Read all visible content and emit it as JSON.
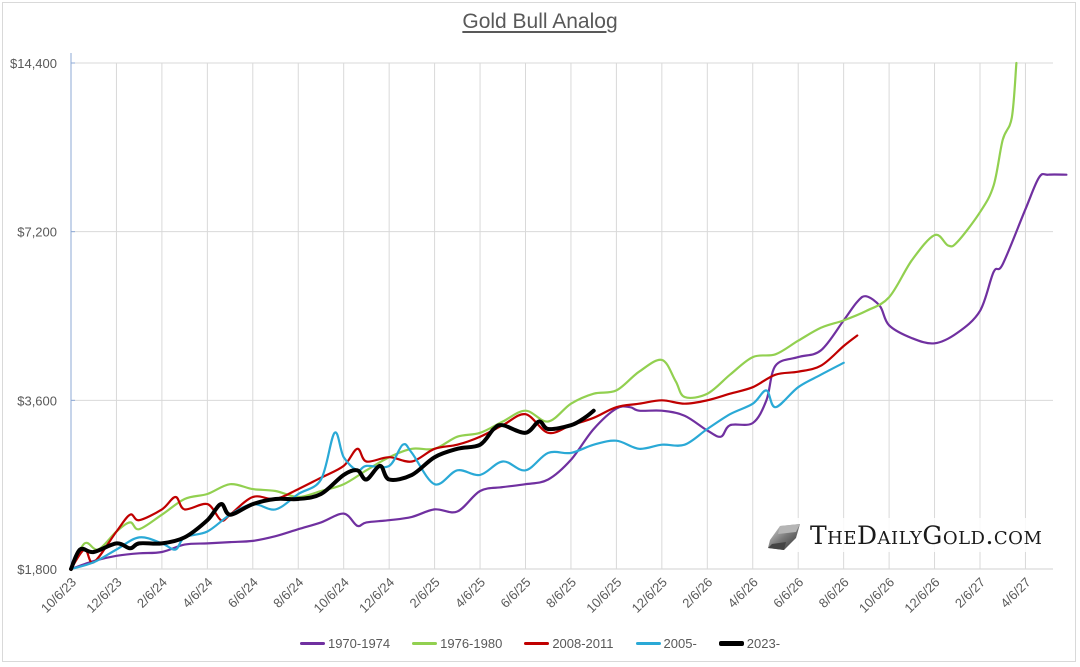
{
  "chart_data": {
    "type": "line",
    "title": "Gold Bull Analog",
    "xlabel": "",
    "ylabel": "",
    "yscale": "log2",
    "ylim": [
      1800,
      14400
    ],
    "yticks": [
      1800,
      3600,
      7200,
      14400
    ],
    "ytick_labels": [
      "$1,800",
      "$3,600",
      "$7,200",
      "$14,400"
    ],
    "x_tick_labels": [
      "10/6/23",
      "12/6/23",
      "2/6/24",
      "4/6/24",
      "6/6/24",
      "8/6/24",
      "10/6/24",
      "12/6/24",
      "2/6/25",
      "4/6/25",
      "6/6/25",
      "8/6/25",
      "10/6/25",
      "12/6/25",
      "2/6/26",
      "4/6/26",
      "6/6/26",
      "8/6/26",
      "10/6/26",
      "12/6/26",
      "2/6/27",
      "4/6/27"
    ],
    "x_index_note": "x values are in units of tick intervals (2 months each) from 10/6/23",
    "grid": true,
    "legend_position": "bottom",
    "series": [
      {
        "name": "1970-1974",
        "color": "#7030a0",
        "x": [
          0,
          0.5,
          1,
          1.5,
          2,
          2.5,
          3,
          3.5,
          4,
          4.5,
          5,
          5.5,
          6,
          6.3,
          6.5,
          7,
          7.5,
          8,
          8.5,
          9,
          9.5,
          10,
          10.5,
          11,
          11.5,
          12,
          12.3,
          12.5,
          13,
          13.5,
          14,
          14.3,
          14.5,
          15,
          15.3,
          15.5,
          16,
          16.5,
          17,
          17.3,
          17.5,
          17.8,
          18,
          18.5,
          19,
          19.5,
          20,
          20.3,
          20.5,
          21,
          21.3,
          21.5,
          21.9
        ],
        "y": [
          1800,
          1860,
          1900,
          1920,
          1930,
          1990,
          2000,
          2010,
          2020,
          2060,
          2120,
          2180,
          2260,
          2150,
          2180,
          2200,
          2230,
          2300,
          2280,
          2480,
          2520,
          2550,
          2600,
          2820,
          3200,
          3480,
          3500,
          3450,
          3450,
          3380,
          3180,
          3100,
          3250,
          3280,
          3600,
          4150,
          4300,
          4420,
          5000,
          5400,
          5520,
          5300,
          4900,
          4650,
          4550,
          4750,
          5200,
          6100,
          6300,
          7900,
          9000,
          9100,
          9100
        ]
      },
      {
        "name": "1976-1980",
        "color": "#92d050",
        "x": [
          0,
          0.3,
          0.6,
          1,
          1.3,
          1.5,
          2,
          2.5,
          3,
          3.5,
          4,
          4.5,
          5,
          5.5,
          6,
          6.5,
          7,
          7.5,
          8,
          8.5,
          9,
          9.5,
          10,
          10.5,
          11,
          11.5,
          12,
          12.5,
          13,
          13.3,
          13.5,
          14,
          14.5,
          15,
          15.5,
          16,
          16.5,
          17,
          17.5,
          18,
          18.5,
          19,
          19.3,
          19.5,
          20,
          20.3,
          20.5,
          20.7,
          20.8
        ],
        "y": [
          1800,
          2000,
          1950,
          2100,
          2180,
          2120,
          2250,
          2400,
          2450,
          2550,
          2500,
          2480,
          2420,
          2480,
          2550,
          2700,
          2850,
          2950,
          2950,
          3100,
          3150,
          3300,
          3450,
          3300,
          3550,
          3700,
          3750,
          4050,
          4250,
          3900,
          3650,
          3700,
          4000,
          4300,
          4350,
          4600,
          4850,
          5000,
          5200,
          5500,
          6400,
          7100,
          6800,
          6900,
          7800,
          8700,
          10500,
          11500,
          14400
        ]
      },
      {
        "name": "2008-2011",
        "color": "#c00000",
        "x": [
          0,
          0.3,
          0.5,
          1,
          1.3,
          1.5,
          2,
          2.3,
          2.5,
          3,
          3.3,
          3.5,
          4,
          4.5,
          5,
          5.5,
          6,
          6.3,
          6.5,
          7,
          7.5,
          8,
          8.5,
          9,
          9.5,
          10,
          10.5,
          11,
          11.5,
          12,
          12.5,
          13,
          13.5,
          14,
          14.5,
          15,
          15.5,
          16,
          16.5,
          17,
          17.3
        ],
        "y": [
          1800,
          1950,
          1850,
          2100,
          2250,
          2200,
          2300,
          2420,
          2300,
          2350,
          2200,
          2250,
          2420,
          2400,
          2500,
          2620,
          2750,
          2950,
          2800,
          2850,
          2800,
          2950,
          3000,
          3100,
          3250,
          3400,
          3150,
          3250,
          3350,
          3500,
          3550,
          3600,
          3550,
          3600,
          3700,
          3800,
          4000,
          4050,
          4150,
          4500,
          4700
        ]
      },
      {
        "name": "2005-",
        "color": "#2aa9d6",
        "x": [
          0,
          0.5,
          1,
          1.5,
          2,
          2.3,
          2.5,
          3,
          3.5,
          4,
          4.5,
          5,
          5.5,
          5.8,
          6,
          6.3,
          6.5,
          7,
          7.3,
          7.5,
          8,
          8.5,
          9,
          9.5,
          10,
          10.5,
          11,
          11.5,
          12,
          12.5,
          13,
          13.5,
          14,
          14.5,
          15,
          15.3,
          15.5,
          16,
          16.5,
          17
        ],
        "y": [
          1800,
          1850,
          1950,
          2050,
          2000,
          1950,
          2050,
          2100,
          2250,
          2350,
          2300,
          2450,
          2600,
          3150,
          2850,
          2700,
          2750,
          2750,
          3000,
          2900,
          2550,
          2700,
          2650,
          2800,
          2700,
          2900,
          2900,
          3000,
          3050,
          2950,
          3000,
          3000,
          3200,
          3400,
          3550,
          3750,
          3500,
          3800,
          4000,
          4200
        ]
      },
      {
        "name": "2023-",
        "color": "#000000",
        "x": [
          0,
          0.2,
          0.5,
          1,
          1.3,
          1.5,
          2,
          2.5,
          3,
          3.3,
          3.5,
          4,
          4.5,
          5,
          5.5,
          6,
          6.3,
          6.5,
          6.8,
          7,
          7.5,
          8,
          8.5,
          9,
          9.3,
          9.5,
          10,
          10.3,
          10.5,
          11,
          11.3,
          11.5
        ],
        "y": [
          1800,
          1950,
          1930,
          2000,
          1960,
          2000,
          2000,
          2050,
          2200,
          2350,
          2250,
          2350,
          2400,
          2400,
          2450,
          2650,
          2700,
          2600,
          2750,
          2600,
          2650,
          2850,
          2950,
          3000,
          3200,
          3250,
          3150,
          3300,
          3200,
          3250,
          3350,
          3450
        ]
      }
    ]
  },
  "legend": [
    "1970-1974",
    "1976-1980",
    "2008-2011",
    "2005-",
    "2023-"
  ],
  "watermark": {
    "text": "TheDailyGold.com",
    "icon": "gold-bar-icon"
  }
}
